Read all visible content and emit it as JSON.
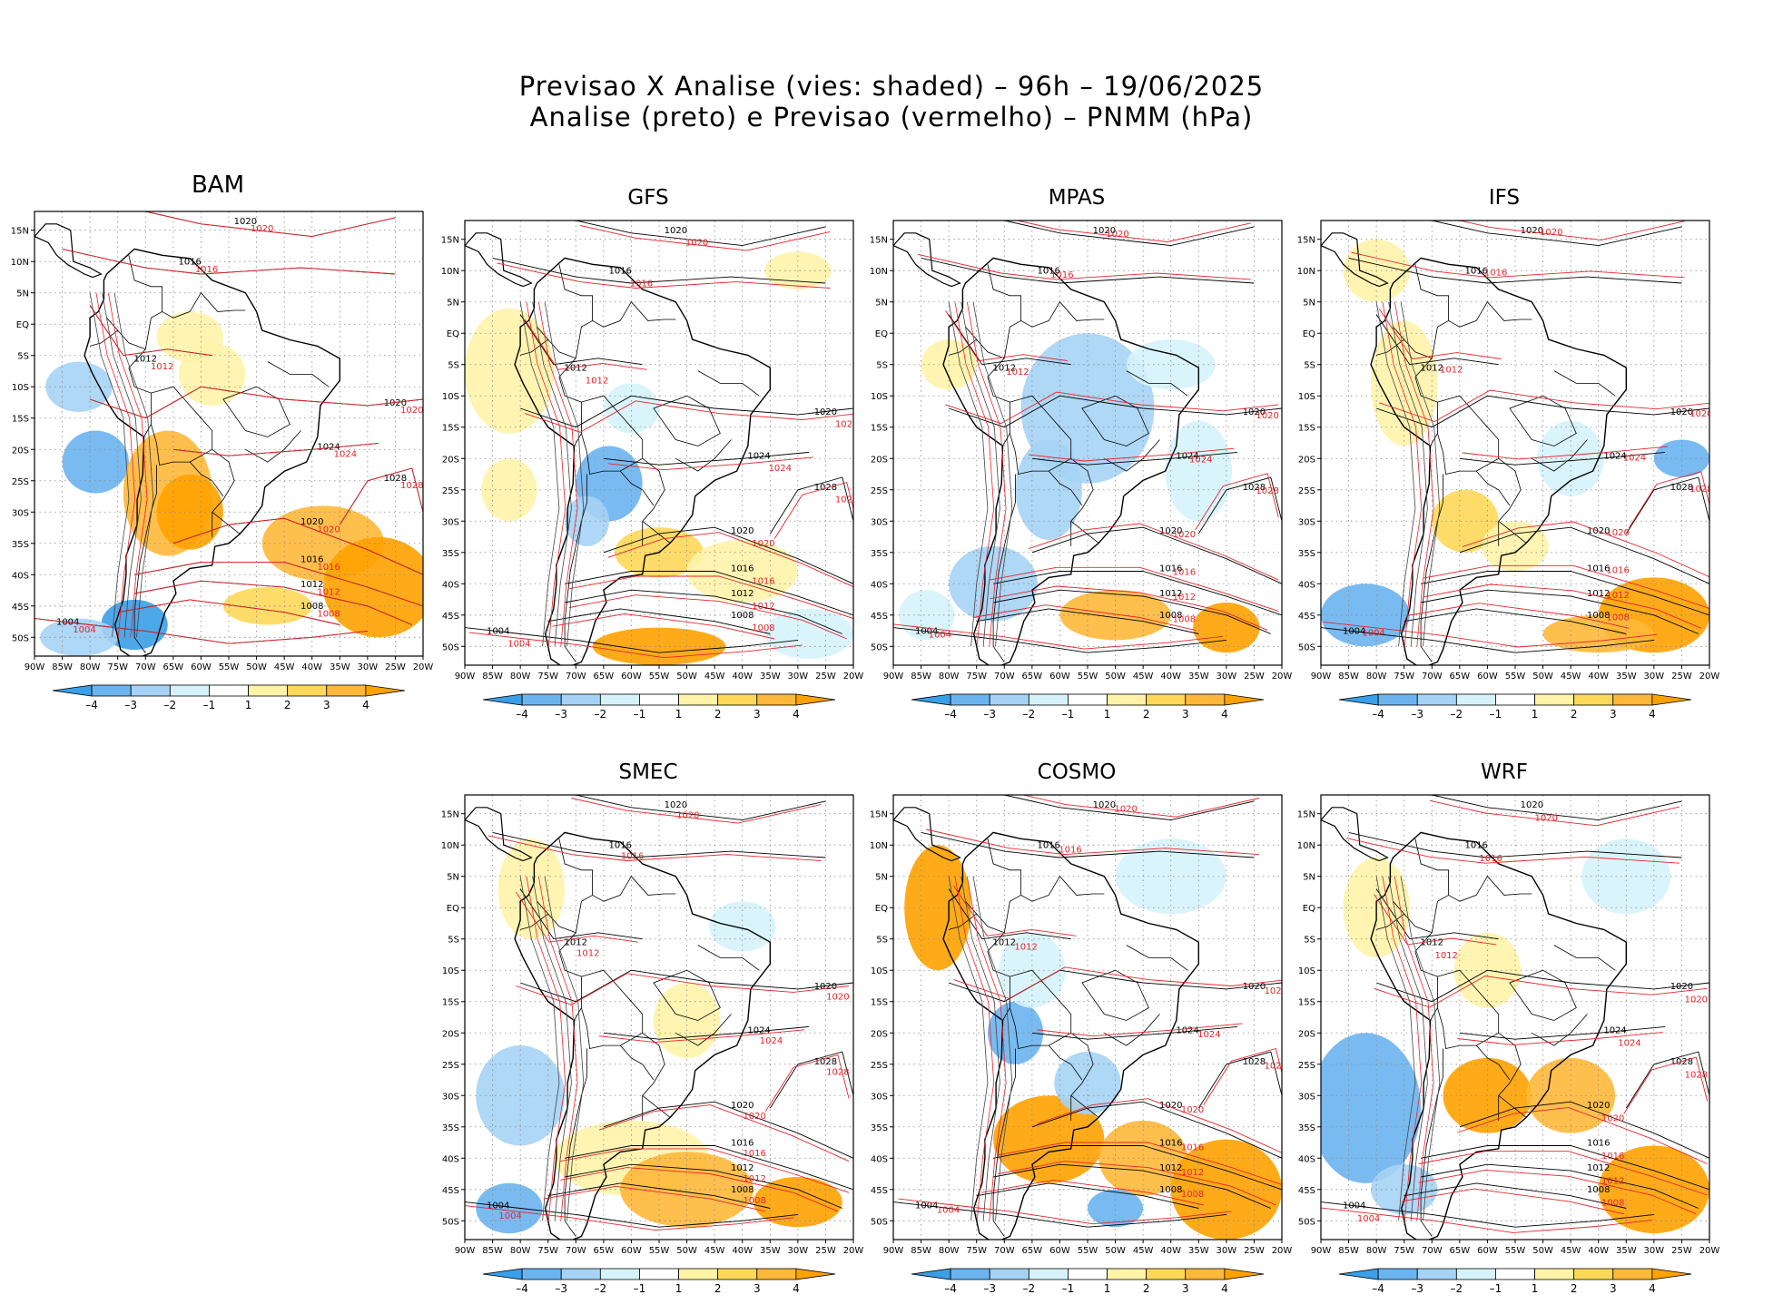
{
  "title": {
    "line1": "Previsao X Analise (vies: shaded) – 96h – 19/06/2025",
    "line2": "Analise (preto) e Previsao (vermelho) – PNMM (hPa)"
  },
  "panels": [
    {
      "id": "bam",
      "name": "BAM"
    },
    {
      "id": "gfs",
      "name": "GFS"
    },
    {
      "id": "mpas",
      "name": "MPAS"
    },
    {
      "id": "ifs",
      "name": "IFS"
    },
    {
      "id": "smec",
      "name": "SMEC"
    },
    {
      "id": "cosmo",
      "name": "COSMO"
    },
    {
      "id": "wrf",
      "name": "WRF"
    }
  ],
  "lon_labels": [
    "90W",
    "85W",
    "80W",
    "75W",
    "70W",
    "65W",
    "60W",
    "55W",
    "50W",
    "45W",
    "40W",
    "35W",
    "30W",
    "25W",
    "20W"
  ],
  "lat_labels": [
    "15N",
    "10N",
    "5N",
    "EQ",
    "5S",
    "10S",
    "15S",
    "20S",
    "25S",
    "30S",
    "35S",
    "40S",
    "45S",
    "50S"
  ],
  "colorbar": {
    "labels": [
      "–4",
      "–3",
      "–2",
      "–1",
      "1",
      "2",
      "3",
      "4"
    ],
    "colors": [
      "#3a9fe8",
      "#6ab4f0",
      "#a6d3f5",
      "#d6f3fb",
      "#ffffff",
      "#fff3a8",
      "#ffd85a",
      "#ffb83a",
      "#ffa200"
    ]
  },
  "legend_colors": {
    "analysis": "#000000",
    "forecast": "#e8242a"
  },
  "isobars": {
    "analysis": [
      "1004",
      "1008",
      "1012",
      "1016",
      "1020",
      "1024",
      "1028"
    ],
    "forecast": [
      "1004",
      "1008",
      "1012",
      "1016",
      "1020",
      "1024",
      "1028"
    ]
  }
}
